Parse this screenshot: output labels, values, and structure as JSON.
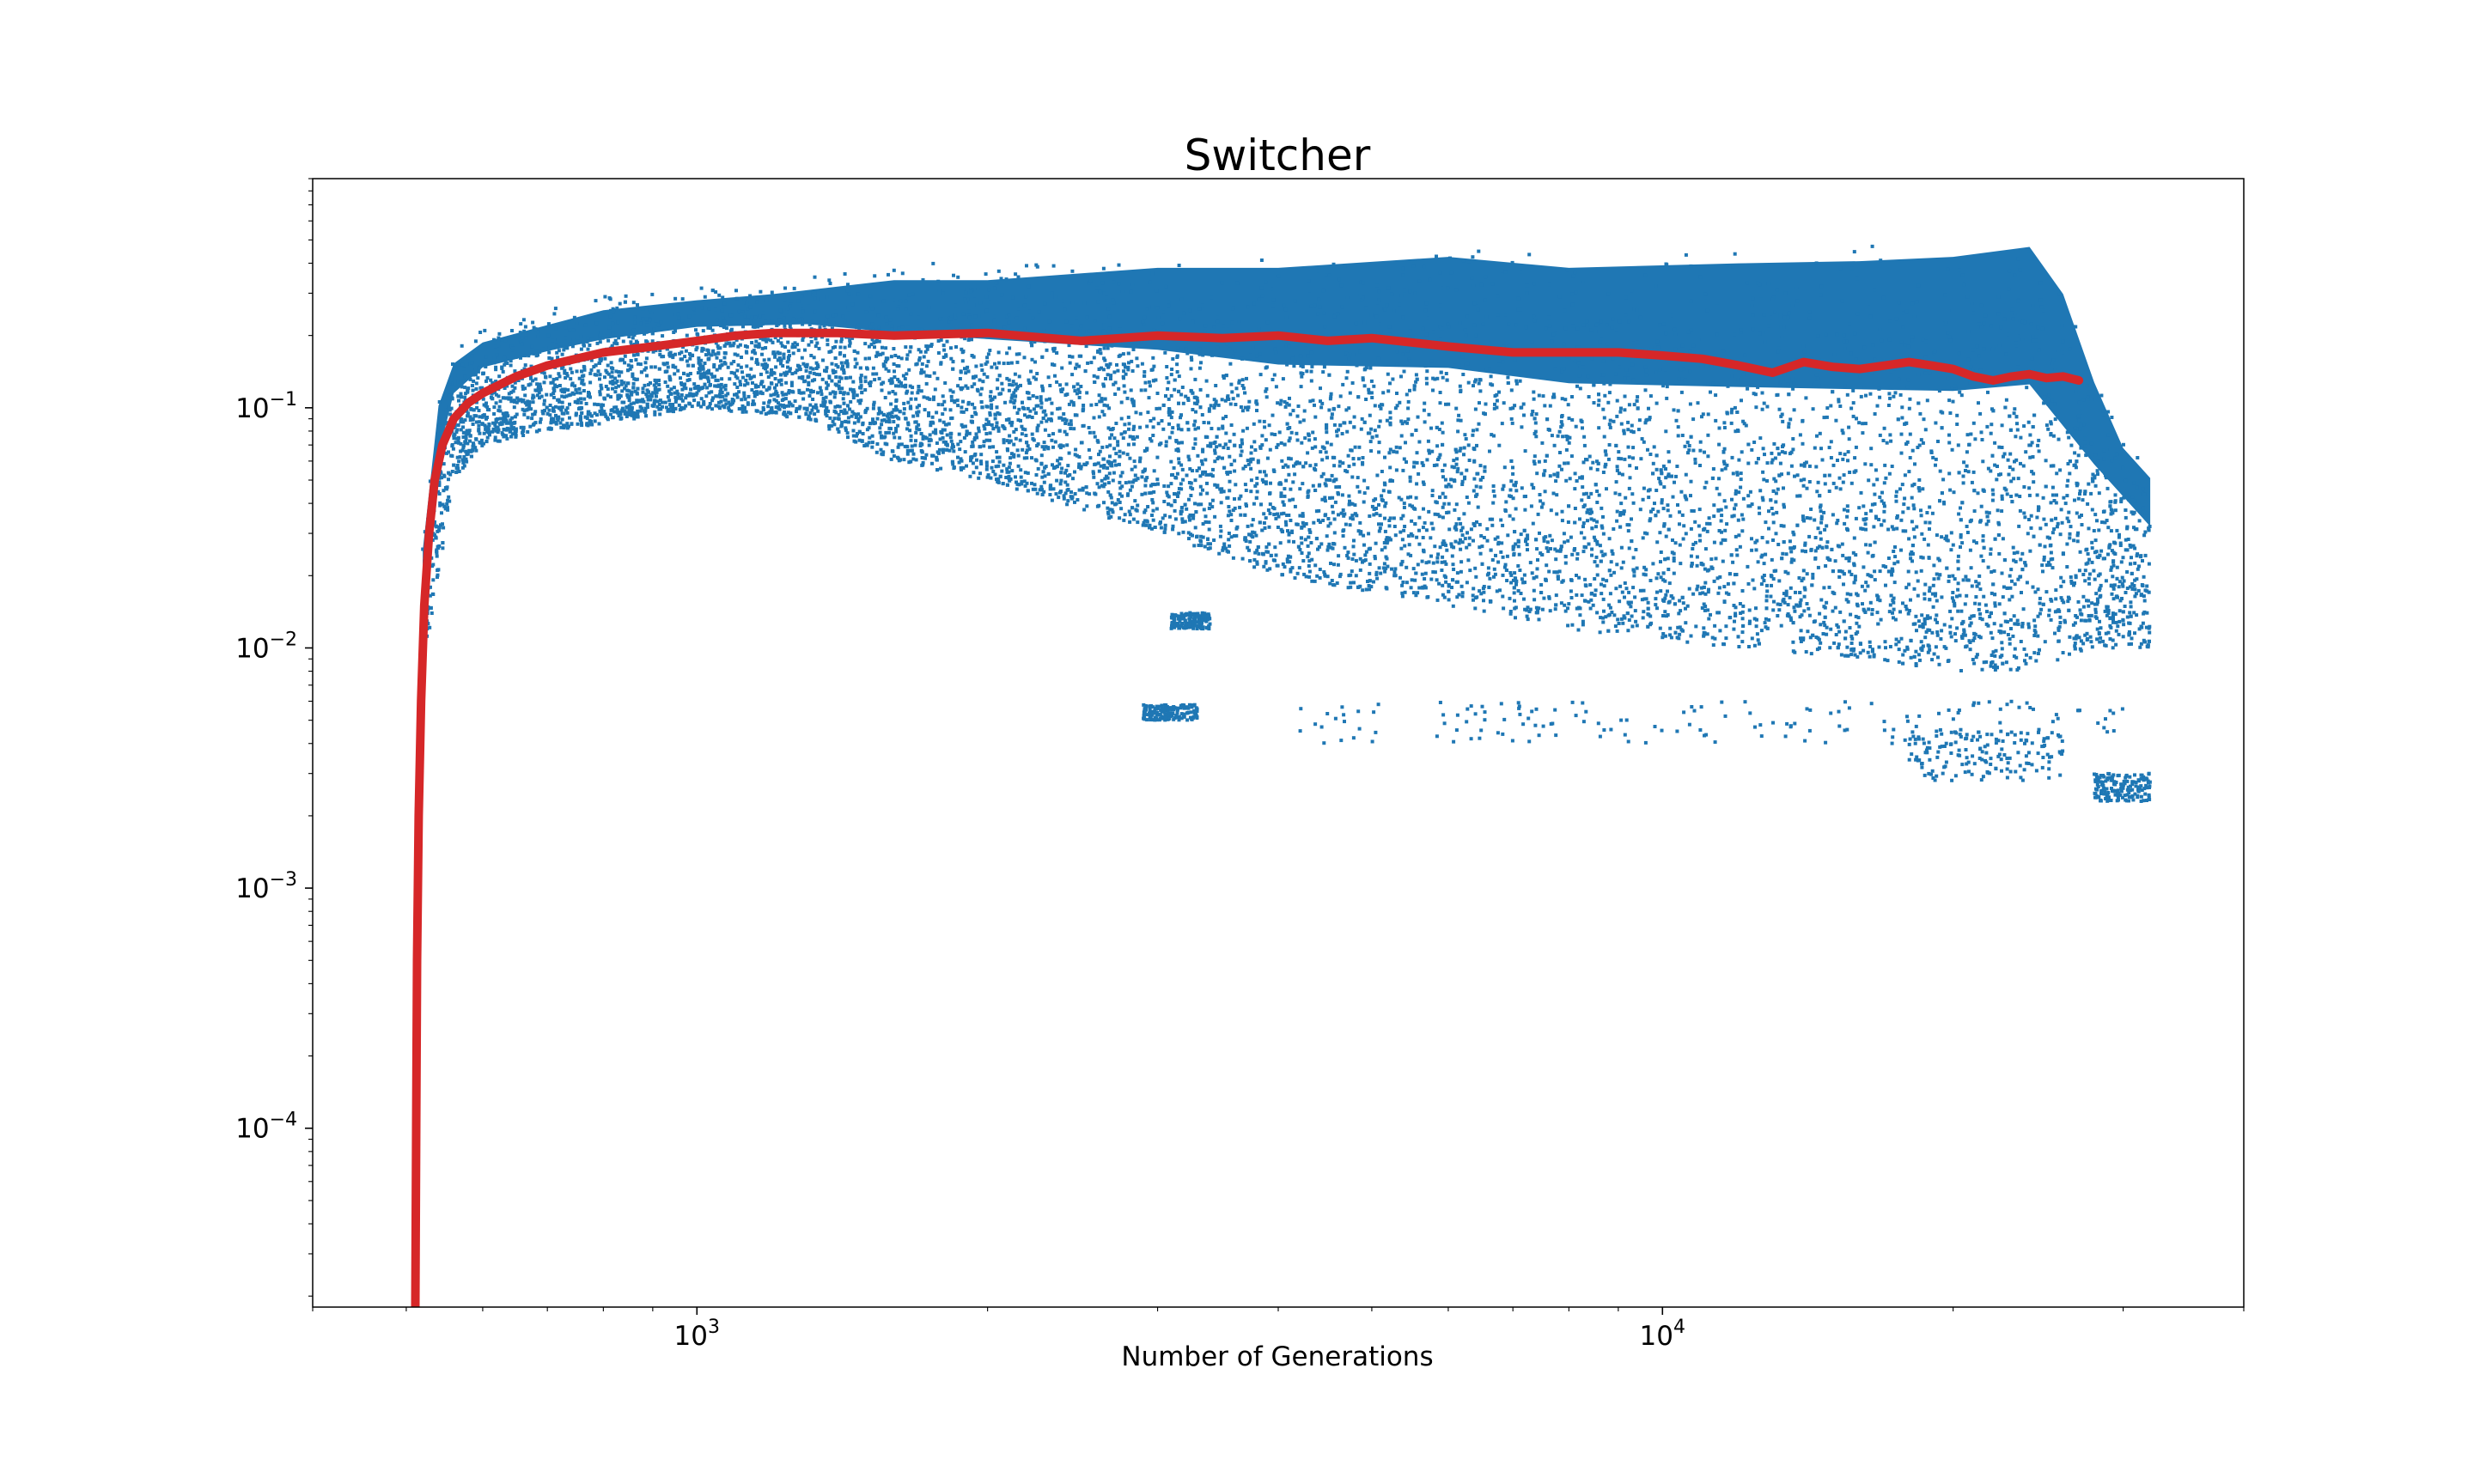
{
  "chart_data": {
    "type": "scatter",
    "title": "Switcher",
    "xlabel": "Number of Generations",
    "ylabel": "",
    "x_scale": "log",
    "y_scale": "log",
    "xlim": [
      400,
      40000
    ],
    "ylim": [
      1.8e-05,
      0.9
    ],
    "grid": false,
    "legend": "none",
    "x_ticks": [
      {
        "value": 1000,
        "base": "10",
        "exp": "3"
      },
      {
        "value": 10000,
        "base": "10",
        "exp": "4"
      }
    ],
    "y_ticks": [
      {
        "value": 0.0001,
        "base": "10",
        "exp": "−4"
      },
      {
        "value": 0.001,
        "base": "10",
        "exp": "−3"
      },
      {
        "value": 0.01,
        "base": "10",
        "exp": "−2"
      },
      {
        "value": 0.1,
        "base": "10",
        "exp": "−1"
      }
    ],
    "series": [
      {
        "color": "#1f77b4",
        "kind": "scatter-band",
        "band_upper": [
          [
            520,
            0.03
          ],
          [
            540,
            0.12
          ],
          [
            560,
            0.18
          ],
          [
            600,
            0.22
          ],
          [
            700,
            0.26
          ],
          [
            800,
            0.3
          ],
          [
            1000,
            0.33
          ],
          [
            1200,
            0.35
          ],
          [
            1600,
            0.4
          ],
          [
            2000,
            0.4
          ],
          [
            3000,
            0.45
          ],
          [
            4000,
            0.45
          ],
          [
            6000,
            0.5
          ],
          [
            8000,
            0.45
          ],
          [
            12000,
            0.47
          ],
          [
            16000,
            0.48
          ],
          [
            20000,
            0.5
          ],
          [
            24000,
            0.55
          ],
          [
            26000,
            0.35
          ],
          [
            28000,
            0.15
          ],
          [
            30000,
            0.08
          ],
          [
            32000,
            0.06
          ]
        ],
        "band_lower": [
          [
            520,
            0.008
          ],
          [
            540,
            0.02
          ],
          [
            560,
            0.05
          ],
          [
            600,
            0.07
          ],
          [
            700,
            0.08
          ],
          [
            800,
            0.085
          ],
          [
            1000,
            0.1
          ],
          [
            1300,
            0.09
          ],
          [
            1600,
            0.06
          ],
          [
            2000,
            0.05
          ],
          [
            3000,
            0.03
          ],
          [
            4000,
            0.02
          ],
          [
            6000,
            0.015
          ],
          [
            8000,
            0.012
          ],
          [
            12000,
            0.01
          ],
          [
            16000,
            0.009
          ],
          [
            20000,
            0.008
          ],
          [
            24000,
            0.008
          ],
          [
            28000,
            0.01
          ],
          [
            32000,
            0.01
          ]
        ],
        "outlier_clusters": [
          {
            "x": [
              4200,
              30000
            ],
            "y": [
              0.004,
              0.006
            ]
          },
          {
            "x": [
              18000,
              26000
            ],
            "y": [
              0.0028,
              0.0045
            ]
          },
          {
            "x": [
              28000,
              32000
            ],
            "y": [
              0.0023,
              0.003
            ]
          },
          {
            "x": [
              2900,
              3300
            ],
            "y": [
              0.005,
              0.0058
            ]
          },
          {
            "x": [
              3100,
              3400
            ],
            "y": [
              0.012,
              0.014
            ]
          }
        ]
      },
      {
        "color": "#d62728",
        "kind": "line",
        "x": [
          511,
          512,
          513,
          515,
          518,
          522,
          528,
          535,
          545,
          560,
          580,
          600,
          650,
          700,
          800,
          900,
          1000,
          1100,
          1200,
          1400,
          1600,
          2000,
          2500,
          3000,
          3500,
          4000,
          4500,
          5000,
          6000,
          7000,
          8000,
          9000,
          10000,
          11000,
          12000,
          13000,
          14000,
          15000,
          16000,
          17000,
          18000,
          19000,
          20000,
          21000,
          22000,
          23000,
          24000,
          25000,
          26000,
          27000
        ],
        "y": [
          1.8e-05,
          0.0001,
          0.0005,
          0.002,
          0.006,
          0.015,
          0.03,
          0.05,
          0.07,
          0.09,
          0.105,
          0.115,
          0.135,
          0.15,
          0.17,
          0.18,
          0.19,
          0.2,
          0.205,
          0.205,
          0.2,
          0.205,
          0.19,
          0.2,
          0.195,
          0.2,
          0.19,
          0.195,
          0.18,
          0.17,
          0.17,
          0.17,
          0.165,
          0.16,
          0.15,
          0.14,
          0.155,
          0.148,
          0.145,
          0.15,
          0.155,
          0.15,
          0.145,
          0.135,
          0.13,
          0.135,
          0.138,
          0.133,
          0.135,
          0.13
        ]
      }
    ]
  }
}
